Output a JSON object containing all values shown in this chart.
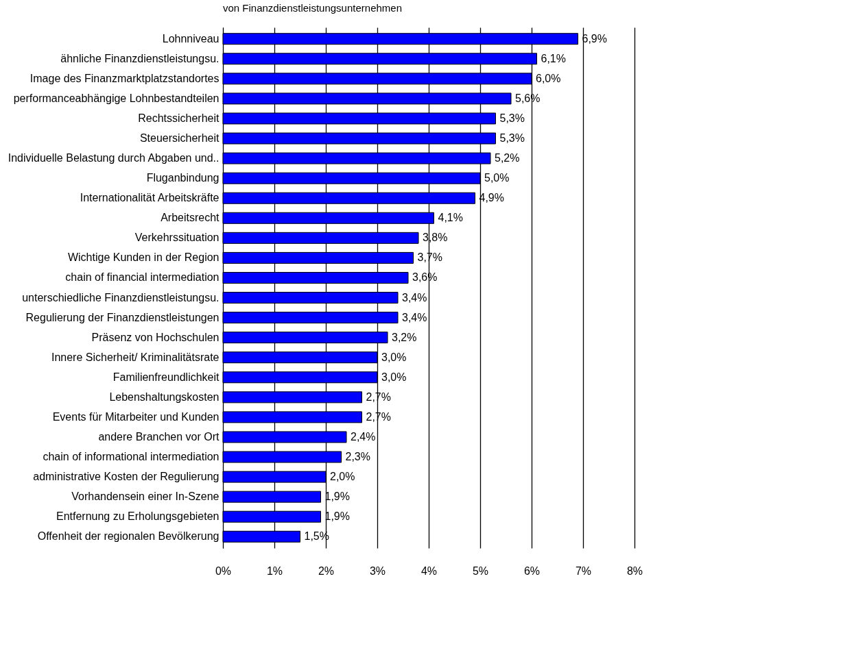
{
  "chart_data": {
    "type": "bar",
    "orientation": "horizontal",
    "title": "von Finanzdienstleistungsunternehmen",
    "categories": [
      "Lohnniveau",
      "ähnliche Finanzdienstleistungsu.",
      "Image des Finanzmarktplatzstandortes",
      "performanceabhängige Lohnbestandteilen",
      "Rechtssicherheit",
      "Steuersicherheit",
      "Individuelle Belastung durch Abgaben und..",
      "Fluganbindung",
      "Internationalität Arbeitskräfte",
      "Arbeitsrecht",
      "Verkehrssituation",
      "Wichtige Kunden in der Region",
      "chain of financial intermediation",
      "unterschiedliche Finanzdienstleistungsu.",
      "Regulierung der Finanzdienstleistungen",
      "Präsenz von Hochschulen",
      "Innere Sicherheit/ Kriminalitätsrate",
      "Familienfreundlichkeit",
      "Lebenshaltungskosten",
      "Events für Mitarbeiter und Kunden",
      "andere Branchen vor Ort",
      "chain of informational intermediation",
      "administrative Kosten der Regulierung",
      "Vorhandensein einer In-Szene",
      "Entfernung zu  Erholungsgebieten",
      "Offenheit der regionalen Bevölkerung"
    ],
    "values": [
      6.9,
      6.1,
      6.0,
      5.6,
      5.3,
      5.3,
      5.2,
      5.0,
      4.9,
      4.1,
      3.8,
      3.7,
      3.6,
      3.4,
      3.4,
      3.2,
      3.0,
      3.0,
      2.7,
      2.7,
      2.4,
      2.3,
      2.0,
      1.9,
      1.9,
      1.5
    ],
    "value_labels": [
      "6,9%",
      "6,1%",
      "6,0%",
      "5,6%",
      "5,3%",
      "5,3%",
      "5,2%",
      "5,0%",
      "4,9%",
      "4,1%",
      "3,8%",
      "3,7%",
      "3,6%",
      "3,4%",
      "3,4%",
      "3,2%",
      "3,0%",
      "3,0%",
      "2,7%",
      "2,7%",
      "2,4%",
      "2,3%",
      "2,0%",
      "1,9%",
      "1,9%",
      "1,5%"
    ],
    "color": "#0000ff",
    "xlim": [
      0,
      8
    ],
    "xticks": [
      {
        "value": 0,
        "label": "0%"
      },
      {
        "value": 1,
        "label": "1%"
      },
      {
        "value": 2,
        "label": "2%"
      },
      {
        "value": 3,
        "label": "3%"
      },
      {
        "value": 4,
        "label": "4%"
      },
      {
        "value": 5,
        "label": "5%"
      },
      {
        "value": 6,
        "label": "6%"
      },
      {
        "value": 7,
        "label": "7%"
      },
      {
        "value": 8,
        "label": "8%"
      }
    ],
    "grid": "x"
  }
}
